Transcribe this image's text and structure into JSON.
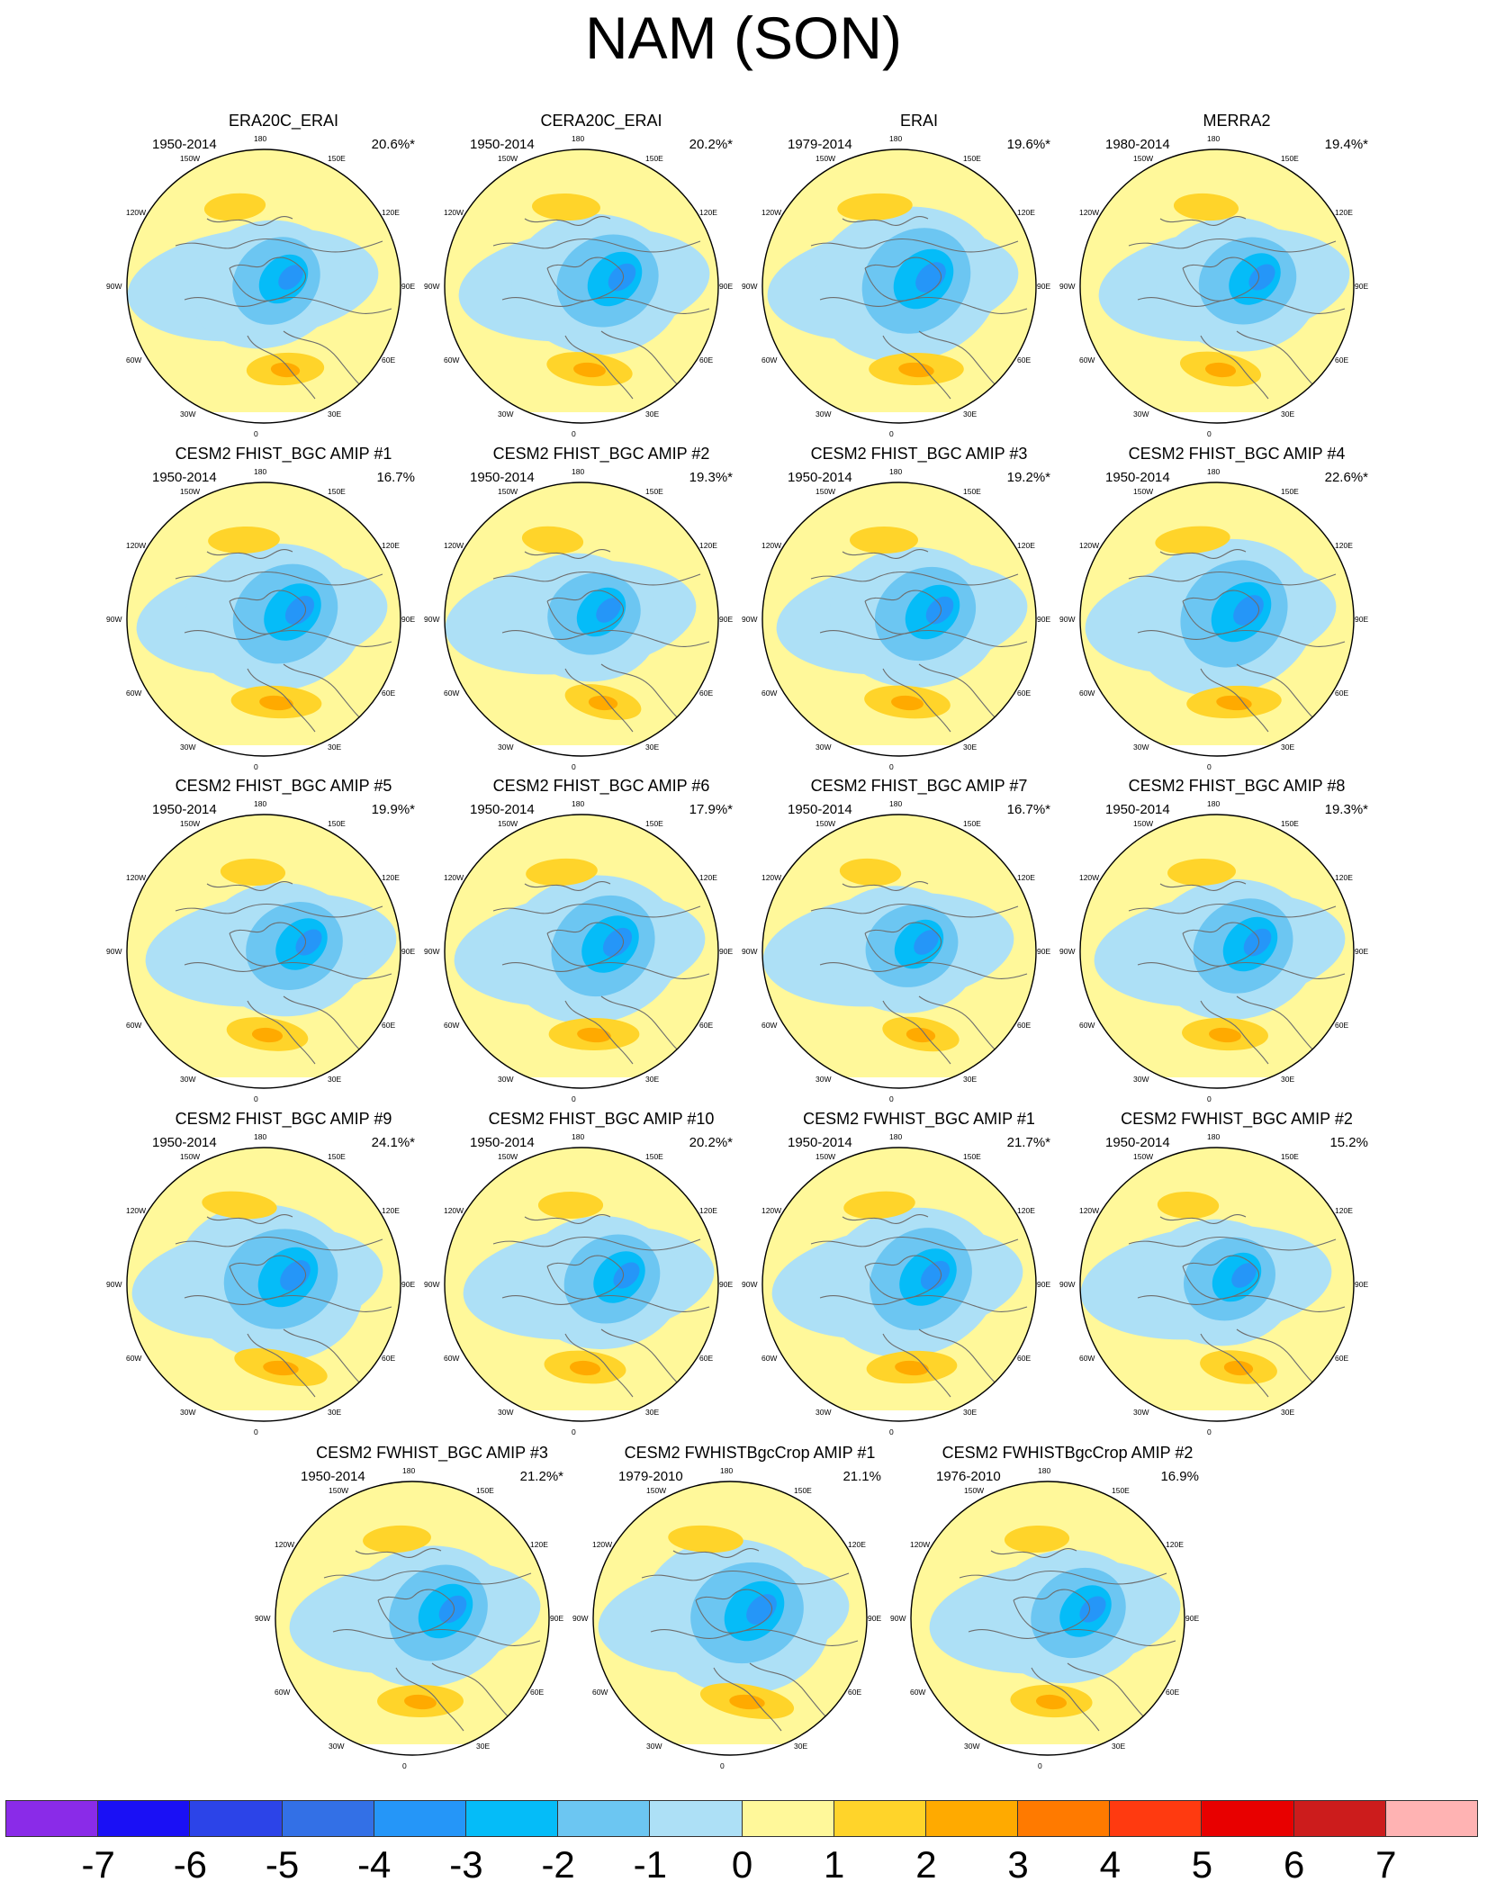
{
  "title": "NAM (SON)",
  "longitude_labels": [
    "180",
    "150E",
    "120E",
    "90E",
    "60E",
    "30E",
    "0",
    "30W",
    "60W",
    "90W",
    "120W",
    "150W"
  ],
  "panels": [
    {
      "title": "ERA20C_ERAI",
      "years": "1950-2014",
      "percent": "20.6%*"
    },
    {
      "title": "CERA20C_ERAI",
      "years": "1950-2014",
      "percent": "20.2%*"
    },
    {
      "title": "ERAI",
      "years": "1979-2014",
      "percent": "19.6%*"
    },
    {
      "title": "MERRA2",
      "years": "1980-2014",
      "percent": "19.4%*"
    },
    {
      "title": "CESM2 FHIST_BGC AMIP #1",
      "years": "1950-2014",
      "percent": "16.7%"
    },
    {
      "title": "CESM2 FHIST_BGC AMIP #2",
      "years": "1950-2014",
      "percent": "19.3%*"
    },
    {
      "title": "CESM2 FHIST_BGC AMIP #3",
      "years": "1950-2014",
      "percent": "19.2%*"
    },
    {
      "title": "CESM2 FHIST_BGC AMIP #4",
      "years": "1950-2014",
      "percent": "22.6%*"
    },
    {
      "title": "CESM2 FHIST_BGC AMIP #5",
      "years": "1950-2014",
      "percent": "19.9%*"
    },
    {
      "title": "CESM2 FHIST_BGC AMIP #6",
      "years": "1950-2014",
      "percent": "17.9%*"
    },
    {
      "title": "CESM2 FHIST_BGC AMIP #7",
      "years": "1950-2014",
      "percent": "16.7%*"
    },
    {
      "title": "CESM2 FHIST_BGC AMIP #8",
      "years": "1950-2014",
      "percent": "19.3%*"
    },
    {
      "title": "CESM2 FHIST_BGC AMIP #9",
      "years": "1950-2014",
      "percent": "24.1%*"
    },
    {
      "title": "CESM2 FHIST_BGC AMIP #10",
      "years": "1950-2014",
      "percent": "20.2%*"
    },
    {
      "title": "CESM2 FWHIST_BGC AMIP #1",
      "years": "1950-2014",
      "percent": "21.7%*"
    },
    {
      "title": "CESM2 FWHIST_BGC AMIP #2",
      "years": "1950-2014",
      "percent": "15.2%"
    },
    {
      "title": "CESM2 FWHIST_BGC AMIP #3",
      "years": "1950-2014",
      "percent": "21.2%*"
    },
    {
      "title": "CESM2 FWHISTBgcCrop AMIP #1",
      "years": "1979-2010",
      "percent": "21.1%"
    },
    {
      "title": "CESM2 FWHISTBgcCrop AMIP #2",
      "years": "1976-2010",
      "percent": "16.9%"
    }
  ],
  "colorbar": {
    "labels": [
      "-7",
      "-6",
      "-5",
      "-4",
      "-3",
      "-2",
      "-1",
      "0",
      "1",
      "2",
      "3",
      "4",
      "5",
      "6",
      "7"
    ],
    "colors": [
      "#8a2be8",
      "#1a10f5",
      "#2c44e8",
      "#3370e6",
      "#2596f8",
      "#05bcf8",
      "#6cc6f2",
      "#ade0f6",
      "#fff89a",
      "#ffd42a",
      "#ffaa00",
      "#ff7a00",
      "#ff3a10",
      "#e80000",
      "#cc1c1c",
      "#ffb3b3"
    ]
  }
}
